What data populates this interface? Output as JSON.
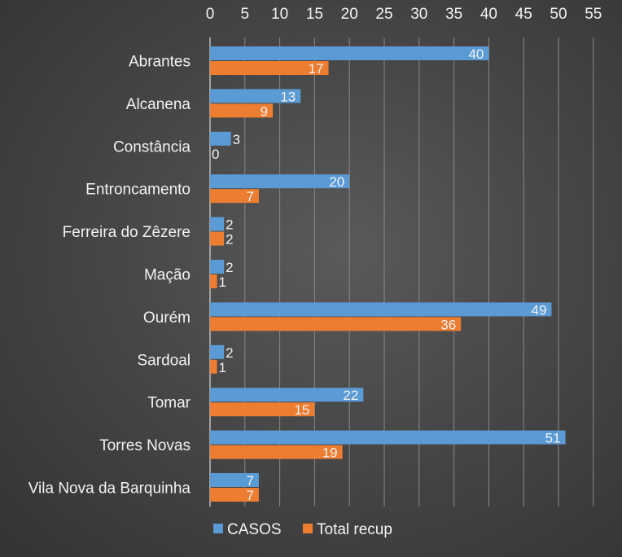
{
  "chart_data": {
    "type": "bar",
    "orientation": "horizontal",
    "categories": [
      "Abrantes",
      "Alcanena",
      "Constância",
      "Entroncamento",
      "Ferreira do Zêzere",
      "Mação",
      "Ourém",
      "Sardoal",
      "Tomar",
      "Torres Novas",
      "Vila Nova da Barquinha"
    ],
    "series": [
      {
        "name": "CASOS",
        "color": "#5b9bd5",
        "values": [
          40,
          13,
          3,
          20,
          2,
          2,
          49,
          2,
          22,
          51,
          7
        ]
      },
      {
        "name": "Total recup",
        "color": "#ed7d31",
        "values": [
          17,
          9,
          0,
          7,
          2,
          1,
          36,
          1,
          15,
          19,
          7
        ]
      }
    ],
    "xlim": [
      0,
      55
    ],
    "x_ticks": [
      "0",
      "5",
      "10",
      "15",
      "20",
      "25",
      "30",
      "35",
      "40",
      "45",
      "50",
      "55"
    ],
    "x_axis_position": "top",
    "grid": true,
    "legend_position": "bottom",
    "title": "",
    "xlabel": "",
    "ylabel": ""
  }
}
